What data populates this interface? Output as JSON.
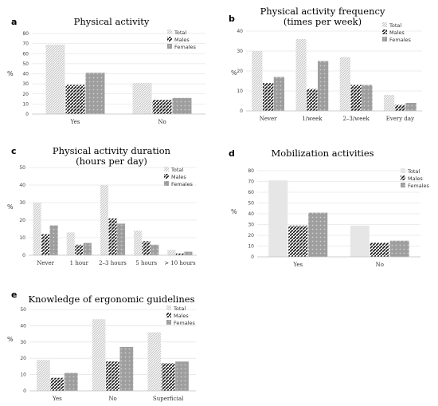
{
  "legend_labels": [
    "Total",
    "Males",
    "Females"
  ],
  "chart_data": [
    {
      "id": "a",
      "type": "bar",
      "letter": "a",
      "title": [
        "Physical activity"
      ],
      "xlabel": "",
      "ylabel": "%",
      "ylim": [
        0,
        80
      ],
      "yticks": [
        0,
        10,
        20,
        30,
        40,
        50,
        60,
        70,
        80
      ],
      "grid": true,
      "legend": "top-right",
      "categories": [
        "Yes",
        "No"
      ],
      "series": [
        {
          "name": "Total",
          "values": [
            69,
            31
          ]
        },
        {
          "name": "Males",
          "values": [
            29,
            14
          ]
        },
        {
          "name": "Females",
          "values": [
            41,
            16
          ]
        }
      ]
    },
    {
      "id": "b",
      "type": "bar",
      "letter": "b",
      "title": [
        "Physical  activity frequency",
        "(times per week)"
      ],
      "xlabel": "",
      "ylabel": "%",
      "ylim": [
        0,
        40
      ],
      "yticks": [
        0,
        10,
        20,
        30,
        40
      ],
      "grid": true,
      "legend": "top-right",
      "categories": [
        "Never",
        "1/week",
        "2–3/week",
        "Every day"
      ],
      "series": [
        {
          "name": "Total",
          "values": [
            30,
            36,
            27,
            8
          ]
        },
        {
          "name": "Males",
          "values": [
            14,
            11,
            13,
            3
          ]
        },
        {
          "name": "Females",
          "values": [
            17,
            25,
            13,
            4
          ]
        }
      ]
    },
    {
      "id": "c",
      "type": "bar",
      "letter": "c",
      "title": [
        "Physical activity duration",
        "(hours per day)"
      ],
      "xlabel": "",
      "ylabel": "%",
      "ylim": [
        0,
        50
      ],
      "yticks": [
        0,
        10,
        20,
        30,
        40,
        50
      ],
      "grid": true,
      "legend": "top-right",
      "categories": [
        "Never",
        "1 hour",
        "2–3 hours",
        "5 hours",
        "> 10 hours"
      ],
      "series": [
        {
          "name": "Total",
          "values": [
            30,
            13,
            40,
            14,
            3
          ]
        },
        {
          "name": "Males",
          "values": [
            12,
            6,
            21,
            8,
            1
          ]
        },
        {
          "name": "Females",
          "values": [
            17,
            7,
            18,
            6,
            2
          ]
        }
      ]
    },
    {
      "id": "d",
      "type": "bar",
      "letter": "d",
      "title": [
        "Mobilization activities"
      ],
      "xlabel": "",
      "ylabel": "%",
      "ylim": [
        0,
        80
      ],
      "yticks": [
        0,
        10,
        20,
        30,
        40,
        50,
        60,
        70,
        80
      ],
      "grid": true,
      "legend": "top-right",
      "categories": [
        "Yes",
        "No"
      ],
      "series": [
        {
          "name": "Total",
          "values": [
            71,
            29
          ]
        },
        {
          "name": "Males",
          "values": [
            29,
            13
          ]
        },
        {
          "name": "Females",
          "values": [
            41,
            15
          ]
        }
      ]
    },
    {
      "id": "e",
      "type": "bar",
      "letter": "e",
      "title": [
        "Knowledge of ergonomic guidelines"
      ],
      "xlabel": "",
      "ylabel": "%",
      "ylim": [
        0,
        50
      ],
      "yticks": [
        0,
        10,
        20,
        30,
        40,
        50
      ],
      "grid": true,
      "legend": "top-right",
      "categories": [
        "Yes",
        "No",
        "Superficial"
      ],
      "series": [
        {
          "name": "Total",
          "values": [
            19,
            44,
            36
          ]
        },
        {
          "name": "Males",
          "values": [
            8,
            18,
            17
          ]
        },
        {
          "name": "Females",
          "values": [
            11,
            27,
            18
          ]
        }
      ]
    }
  ]
}
